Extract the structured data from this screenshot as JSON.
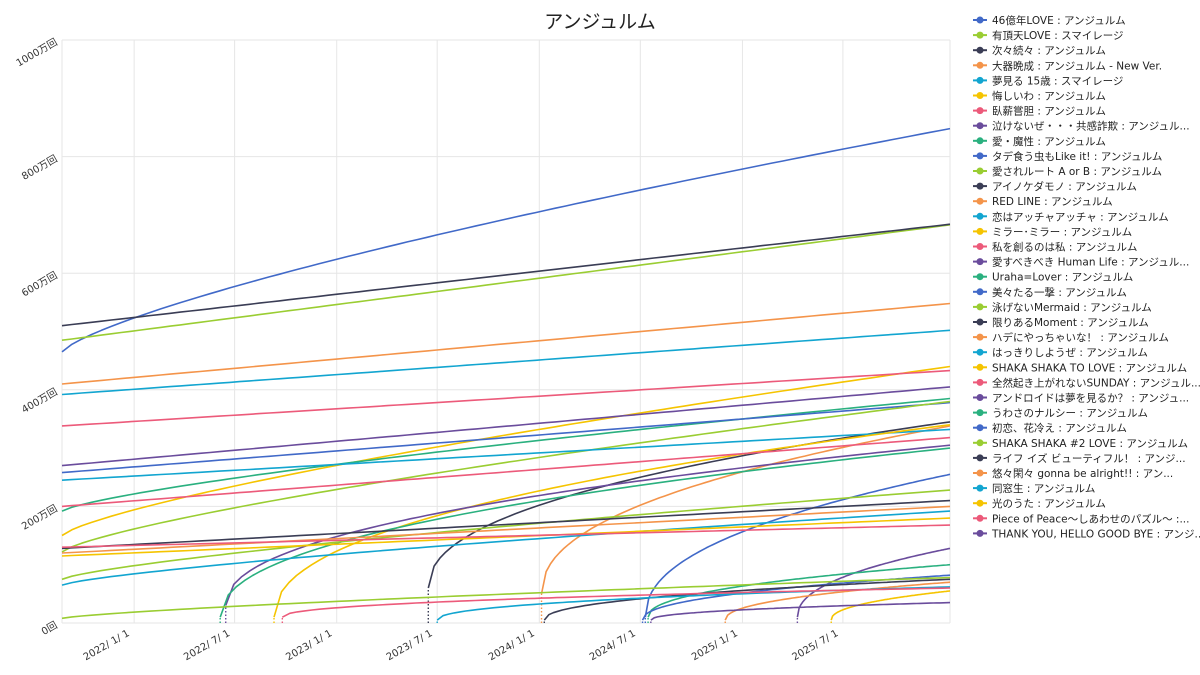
{
  "chart_data": {
    "type": "line",
    "title": "アンジュルム",
    "xlabel": "",
    "ylabel": "",
    "y_ticks": [
      "0回",
      "200万回",
      "400万回",
      "600万回",
      "800万回",
      "1000万回"
    ],
    "y_tick_values": [
      0,
      200,
      400,
      600,
      800,
      1000
    ],
    "ylim": [
      0,
      1000
    ],
    "x_ticks": [
      "2022/ 1/ 1",
      "2022/ 7/ 1",
      "2023/ 1/ 1",
      "2023/ 7/ 1",
      "2024/ 1/ 1",
      "2024/ 7/ 1",
      "2025/ 1/ 1",
      "2025/ 7/ 1"
    ],
    "x_tick_dates": [
      "2022-01-01",
      "2022-07-01",
      "2023-01-01",
      "2023-07-01",
      "2024-01-01",
      "2024-07-01",
      "2025-01-01",
      "2025-07-01"
    ],
    "xlim": [
      "2021-08-24",
      "2026-01-10"
    ],
    "grid": true,
    "legend_position": "right",
    "series": [
      {
        "name": "46億年LOVE : アンジュルム",
        "color": "#4169c8",
        "start": "2021-08-24",
        "start_value": 465,
        "end_value": 848,
        "shape": "concave"
      },
      {
        "name": "有頂天LOVE : スマイレージ",
        "color": "#9acd32",
        "start": "2021-08-24",
        "start_value": 485,
        "end_value": 683,
        "shape": "linear"
      },
      {
        "name": "次々続々 : アンジュルム",
        "color": "#3a3d55",
        "start": "2021-08-24",
        "start_value": 510,
        "end_value": 684,
        "shape": "linear"
      },
      {
        "name": "大器晩成 : アンジュルム - New Ver.",
        "color": "#f4944a",
        "start": "2021-08-24",
        "start_value": 410,
        "end_value": 548,
        "shape": "linear"
      },
      {
        "name": "夢見る 15歳 : スマイレージ",
        "color": "#12a5d0",
        "start": "2021-08-24",
        "start_value": 392,
        "end_value": 502,
        "shape": "linear"
      },
      {
        "name": "悔しいわ : アンジュルム",
        "color": "#f5c400",
        "start": "2021-08-24",
        "start_value": 150,
        "end_value": 440,
        "shape": "concave"
      },
      {
        "name": "臥薪嘗胆 : アンジュルム",
        "color": "#ec5a7a",
        "start": "2021-08-24",
        "start_value": 338,
        "end_value": 433,
        "shape": "linear"
      },
      {
        "name": "泣けないぜ・・・共感詐欺 : アンジュルム",
        "color": "#6a4c9c",
        "start": "2021-08-24",
        "start_value": 270,
        "end_value": 405,
        "shape": "linear"
      },
      {
        "name": "愛・魔性 : アンジュルム",
        "color": "#2ab07f",
        "start": "2021-08-24",
        "start_value": 192,
        "end_value": 385,
        "shape": "concave"
      },
      {
        "name": "タデ食う虫もLike it! : アンジュルム",
        "color": "#4169c8",
        "start": "2021-08-24",
        "start_value": 258,
        "end_value": 378,
        "shape": "linear"
      },
      {
        "name": "愛されルート A or B : アンジュルム",
        "color": "#9acd32",
        "start": "2021-08-24",
        "start_value": 122,
        "end_value": 380,
        "shape": "concave"
      },
      {
        "name": "アイノケダモノ : アンジュルム",
        "color": "#3a3d55",
        "start": "2023-06-15",
        "start_value": 60,
        "end_value": 345,
        "shape": "sqrt"
      },
      {
        "name": "RED LINE : アンジュルム",
        "color": "#f4944a",
        "start": "2024-01-05",
        "start_value": 50,
        "end_value": 338,
        "shape": "sqrt"
      },
      {
        "name": "恋はアッチャアッチャ : アンジュルム",
        "color": "#12a5d0",
        "start": "2021-08-24",
        "start_value": 245,
        "end_value": 332,
        "shape": "linear"
      },
      {
        "name": "ミラー･ミラー : アンジュルム",
        "color": "#f5c400",
        "start": "2022-09-10",
        "start_value": 10,
        "end_value": 340,
        "shape": "sqrt"
      },
      {
        "name": "私を創るのは私 : アンジュルム",
        "color": "#ec5a7a",
        "start": "2021-08-24",
        "start_value": 200,
        "end_value": 318,
        "shape": "linear"
      },
      {
        "name": "愛すべきべき Human Life : アンジュルム",
        "color": "#6a4c9c",
        "start": "2022-06-15",
        "start_value": 30,
        "end_value": 305,
        "shape": "sqrt"
      },
      {
        "name": "Uraha=Lover : アンジュルム",
        "color": "#2ab07f",
        "start": "2022-06-05",
        "start_value": 10,
        "end_value": 300,
        "shape": "sqrt"
      },
      {
        "name": "美々たる一撃 : アンジュルム",
        "color": "#4169c8",
        "start": "2024-07-10",
        "start_value": 10,
        "end_value": 255,
        "shape": "sqrt"
      },
      {
        "name": "泳げないMermaid : アンジュルム",
        "color": "#9acd32",
        "start": "2021-08-24",
        "start_value": 75,
        "end_value": 228,
        "shape": "concave"
      },
      {
        "name": "限りあるMoment : アンジュルム",
        "color": "#3a3d55",
        "start": "2021-08-24",
        "start_value": 128,
        "end_value": 210,
        "shape": "linear"
      },
      {
        "name": "ハデにやっちゃいな！ : アンジュルム",
        "color": "#f4944a",
        "start": "2021-08-24",
        "start_value": 120,
        "end_value": 200,
        "shape": "linear"
      },
      {
        "name": "はっきりしようぜ : アンジュルム",
        "color": "#12a5d0",
        "start": "2021-08-24",
        "start_value": 65,
        "end_value": 192,
        "shape": "concave"
      },
      {
        "name": "SHAKA SHAKA TO LOVE : アンジュルム",
        "color": "#f5c400",
        "start": "2021-08-24",
        "start_value": 115,
        "end_value": 180,
        "shape": "linear"
      },
      {
        "name": "全然起き上がれないSUNDAY : アンジュルム",
        "color": "#ec5a7a",
        "start": "2021-08-24",
        "start_value": 130,
        "end_value": 168,
        "shape": "linear"
      },
      {
        "name": "アンドロイドは夢を見るか？ : アンジュルム",
        "color": "#6a4c9c",
        "start": "2025-04-10",
        "start_value": 10,
        "end_value": 128,
        "shape": "sqrt"
      },
      {
        "name": "うわさのナルシー : アンジュルム",
        "color": "#2ab07f",
        "start": "2024-07-15",
        "start_value": 10,
        "end_value": 100,
        "shape": "sqrt"
      },
      {
        "name": "初恋、花冷え : アンジュルム",
        "color": "#4169c8",
        "start": "2024-07-05",
        "start_value": 5,
        "end_value": 82,
        "shape": "sqrt"
      },
      {
        "name": "SHAKA SHAKA #2 LOVE : アンジュルム",
        "color": "#9acd32",
        "start": "2021-08-24",
        "start_value": 8,
        "end_value": 78,
        "shape": "concave"
      },
      {
        "name": "ライフ イズ ビューティフル！ : アンジュルム",
        "color": "#3a3d55",
        "start": "2024-01-10",
        "start_value": 5,
        "end_value": 75,
        "shape": "sqrt"
      },
      {
        "name": "悠々閑々 gonna be alright!! : アンジュルム",
        "color": "#f4944a",
        "start": "2024-12-01",
        "start_value": 5,
        "end_value": 70,
        "shape": "sqrt"
      },
      {
        "name": "同窓生 : アンジュルム",
        "color": "#12a5d0",
        "start": "2023-07-01",
        "start_value": 5,
        "end_value": 62,
        "shape": "sqrt"
      },
      {
        "name": "光のうた : アンジュルム",
        "color": "#f5c400",
        "start": "2025-06-10",
        "start_value": 5,
        "end_value": 55,
        "shape": "sqrt"
      },
      {
        "name": "Piece of Peace～しあわせのパズル～ : アンジュルム",
        "color": "#ec5a7a",
        "start": "2022-09-25",
        "start_value": 10,
        "end_value": 60,
        "shape": "sqrt"
      },
      {
        "name": "THANK YOU, HELLO GOOD BYE : アンジュルム",
        "color": "#6a4c9c",
        "start": "2024-07-20",
        "start_value": 5,
        "end_value": 35,
        "shape": "sqrt"
      }
    ]
  }
}
